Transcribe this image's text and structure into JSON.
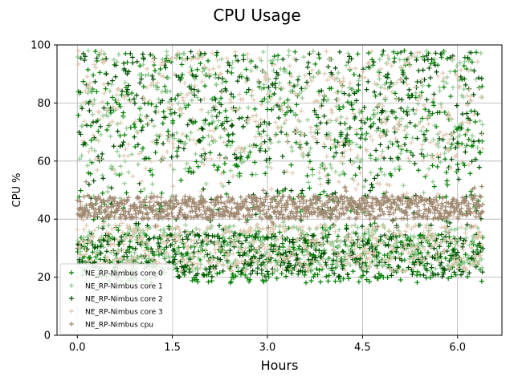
{
  "chart_data": {
    "type": "scatter",
    "title": "CPU Usage",
    "xlabel": "Hours",
    "ylabel": "CPU %",
    "xlim": [
      -0.32,
      6.7
    ],
    "ylim": [
      0,
      100
    ],
    "xticks": [
      0.0,
      1.5,
      3.0,
      4.5,
      6.0
    ],
    "xtick_labels": [
      "0.0",
      "1.5",
      "3.0",
      "4.5",
      "6.0"
    ],
    "yticks": [
      0,
      20,
      40,
      60,
      80,
      100
    ],
    "ytick_labels": [
      "0",
      "20",
      "40",
      "60",
      "80",
      "100"
    ],
    "grid": true,
    "legend_position": "lower-left",
    "x_range": [
      0.0,
      6.4
    ],
    "series": [
      {
        "name": "NE_RP-Nimbus core 0",
        "color": "#008000",
        "marker": "plus",
        "band_low": [
          18,
          35
        ],
        "band_high": [
          55,
          98
        ],
        "spread_fraction": 0.45
      },
      {
        "name": "NE_RP-Nimbus core 1",
        "color": "#90c890",
        "marker": "plus",
        "band_low": [
          22,
          38
        ],
        "band_high": [
          55,
          98
        ],
        "spread_fraction": 0.45
      },
      {
        "name": "NE_RP-Nimbus core 2",
        "color": "#004d00",
        "marker": "plus",
        "band_low": [
          20,
          35
        ],
        "band_high": [
          60,
          98
        ],
        "spread_fraction": 0.45
      },
      {
        "name": "NE_RP-Nimbus core 3",
        "color": "#e0c8b0",
        "marker": "plus",
        "band_low": [
          22,
          38
        ],
        "band_high": [
          60,
          98
        ],
        "spread_fraction": 0.45
      },
      {
        "name": "NE_RP-Nimbus cpu",
        "color": "#a08870",
        "marker": "plus",
        "center": 44,
        "spread": 4
      }
    ]
  }
}
